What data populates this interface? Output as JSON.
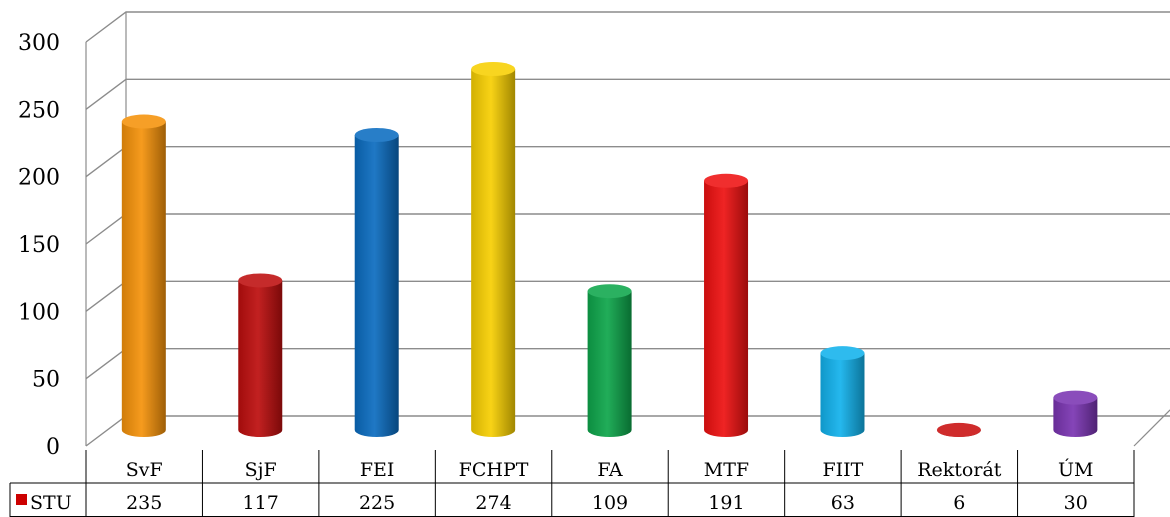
{
  "chart_data": {
    "type": "bar",
    "categories": [
      "SvF",
      "SjF",
      "FEI",
      "FCHPT",
      "FA",
      "MTF",
      "FIIT",
      "Rektorát",
      "ÚM"
    ],
    "series": [
      {
        "name": "STU",
        "values": [
          235,
          117,
          225,
          274,
          109,
          191,
          63,
          6,
          30
        ],
        "bar_colors": [
          "#f5920a",
          "#bd0e0e",
          "#0b6cc0",
          "#f7cf02",
          "#0ea64b",
          "#ee1111",
          "#12b2ec",
          "#c90f0f",
          "#7a35b2"
        ]
      }
    ],
    "ylim": [
      0,
      300
    ],
    "yticks": [
      0,
      50,
      100,
      150,
      200,
      250,
      300
    ],
    "grid": true,
    "data_table": true,
    "legend_key_color": "#cc0000"
  }
}
